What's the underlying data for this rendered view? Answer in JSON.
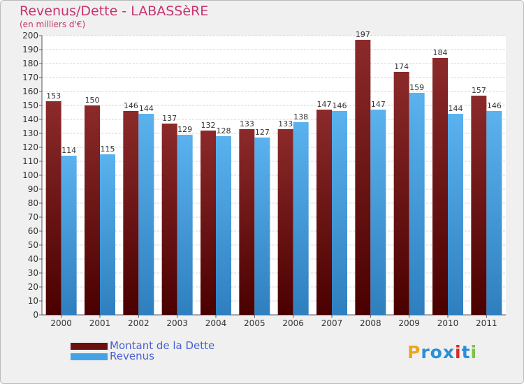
{
  "header": {
    "title": "Revenus/Dette - LABASSèRE",
    "subtitle": "(en milliers d'€)"
  },
  "legend": {
    "items": [
      {
        "label": "Montant de la Dette",
        "color": "#6b0f0f"
      },
      {
        "label": "Revenus",
        "color": "#45a3e5"
      }
    ]
  },
  "logo": {
    "letters": [
      "P",
      "r",
      "o",
      "x",
      "i",
      "t",
      "i"
    ],
    "colors": [
      "#f0a51e",
      "#2a8fd6",
      "#2a8fd6",
      "#2a8fd6",
      "#d62a2a",
      "#2a8fd6",
      "#7cc242"
    ]
  },
  "chart_data": {
    "type": "bar",
    "title": "Revenus/Dette - LABASSèRE",
    "subtitle": "(en milliers d'€)",
    "categories": [
      "2000",
      "2001",
      "2002",
      "2003",
      "2004",
      "2005",
      "2006",
      "2007",
      "2008",
      "2009",
      "2010",
      "2011"
    ],
    "series": [
      {
        "name": "Montant de la Dette",
        "color": "#6b0f0f",
        "values": [
          153,
          150,
          146,
          137,
          132,
          133,
          133,
          147,
          197,
          174,
          184,
          157
        ]
      },
      {
        "name": "Revenus",
        "color": "#45a3e5",
        "values": [
          114,
          115,
          144,
          129,
          128,
          127,
          138,
          146,
          147,
          159,
          144,
          146
        ]
      }
    ],
    "ylim": [
      0,
      200
    ],
    "ytick_step": 10,
    "grid": true,
    "legend_position": "bottom-left",
    "xlabel": "",
    "ylabel": ""
  }
}
